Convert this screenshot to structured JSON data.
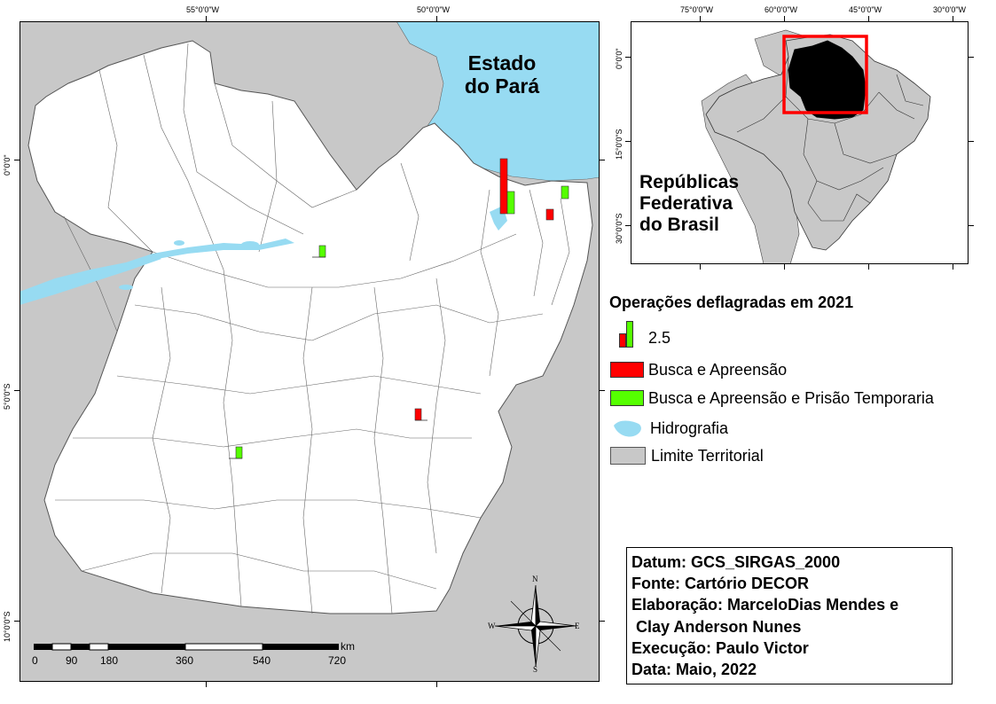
{
  "main_map": {
    "title_line1": "Estado",
    "title_line2": "do Pará",
    "top_ticks": [
      "55°0'0\"W",
      "50°0'0\"W"
    ],
    "left_ticks": [
      "0°0'0\"",
      "5°0'0\"S",
      "10°0'0\"S"
    ],
    "colors": {
      "water": "#97dbf2",
      "territory": "#c8c8c8",
      "land": "#ffffff",
      "red": "#ff0000",
      "green": "#55ff00"
    }
  },
  "inset_map": {
    "top_ticks": [
      "75°0'0\"W",
      "60°0'0\"W",
      "45°0'0\"W",
      "30°0'0\"W"
    ],
    "left_ticks": [
      "0°0'0\"",
      "15°0'0\"S",
      "30°0'0\"S"
    ],
    "label_line1": "Repúblicas",
    "label_line2": "Federativa",
    "label_line3": "do Brasil"
  },
  "legend": {
    "title": "Operações deflagradas em 2021",
    "size_value": "2.5",
    "item_red": "Busca e Apreensão",
    "item_green": "Busca e Apreensão e Prisão Temporaria",
    "item_hydro": "Hidrografia",
    "item_limit": "Limite Territorial"
  },
  "scale_bar": {
    "unit": "km",
    "labels": [
      "0",
      "90",
      "180",
      "360",
      "540",
      "720"
    ]
  },
  "compass": {
    "n": "N",
    "s": "S",
    "e": "E",
    "w": "W"
  },
  "credits": {
    "line1": "Datum: GCS_SIRGAS_2000",
    "line2": "Fonte: Cartório DECOR",
    "line3": "Elaboração: MarceloDias Mendes e",
    "line4": " Clay Anderson Nunes",
    "line5": "Execução: Paulo Victor",
    "line6": "Data: Maio, 2022"
  }
}
